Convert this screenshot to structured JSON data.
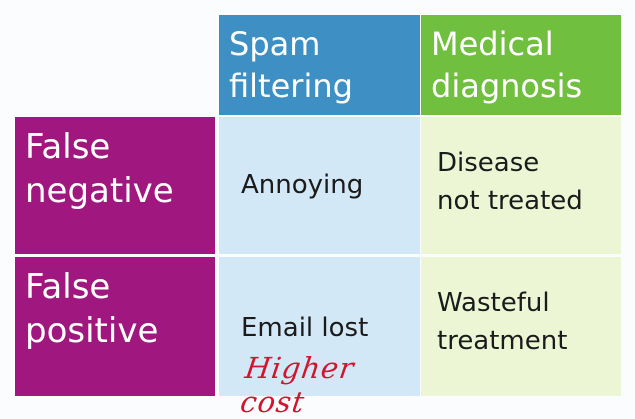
{
  "columns": [
    {
      "label": "Spam\nfiltering",
      "color": "#3d8fc4"
    },
    {
      "label": "Medical\ndiagnosis",
      "color": "#71bf3f"
    }
  ],
  "rows": [
    {
      "label": "False\nnegative",
      "color": "#a0177f"
    },
    {
      "label": "False\npositive",
      "color": "#a0177f"
    }
  ],
  "cells": {
    "fn_spam": "Annoying",
    "fn_medical": "Disease\nnot treated",
    "fp_spam": "Email lost",
    "fp_medical": "Wasteful\ntreatment"
  },
  "annotation": {
    "text": "Higher cost",
    "color": "#d2142e"
  }
}
